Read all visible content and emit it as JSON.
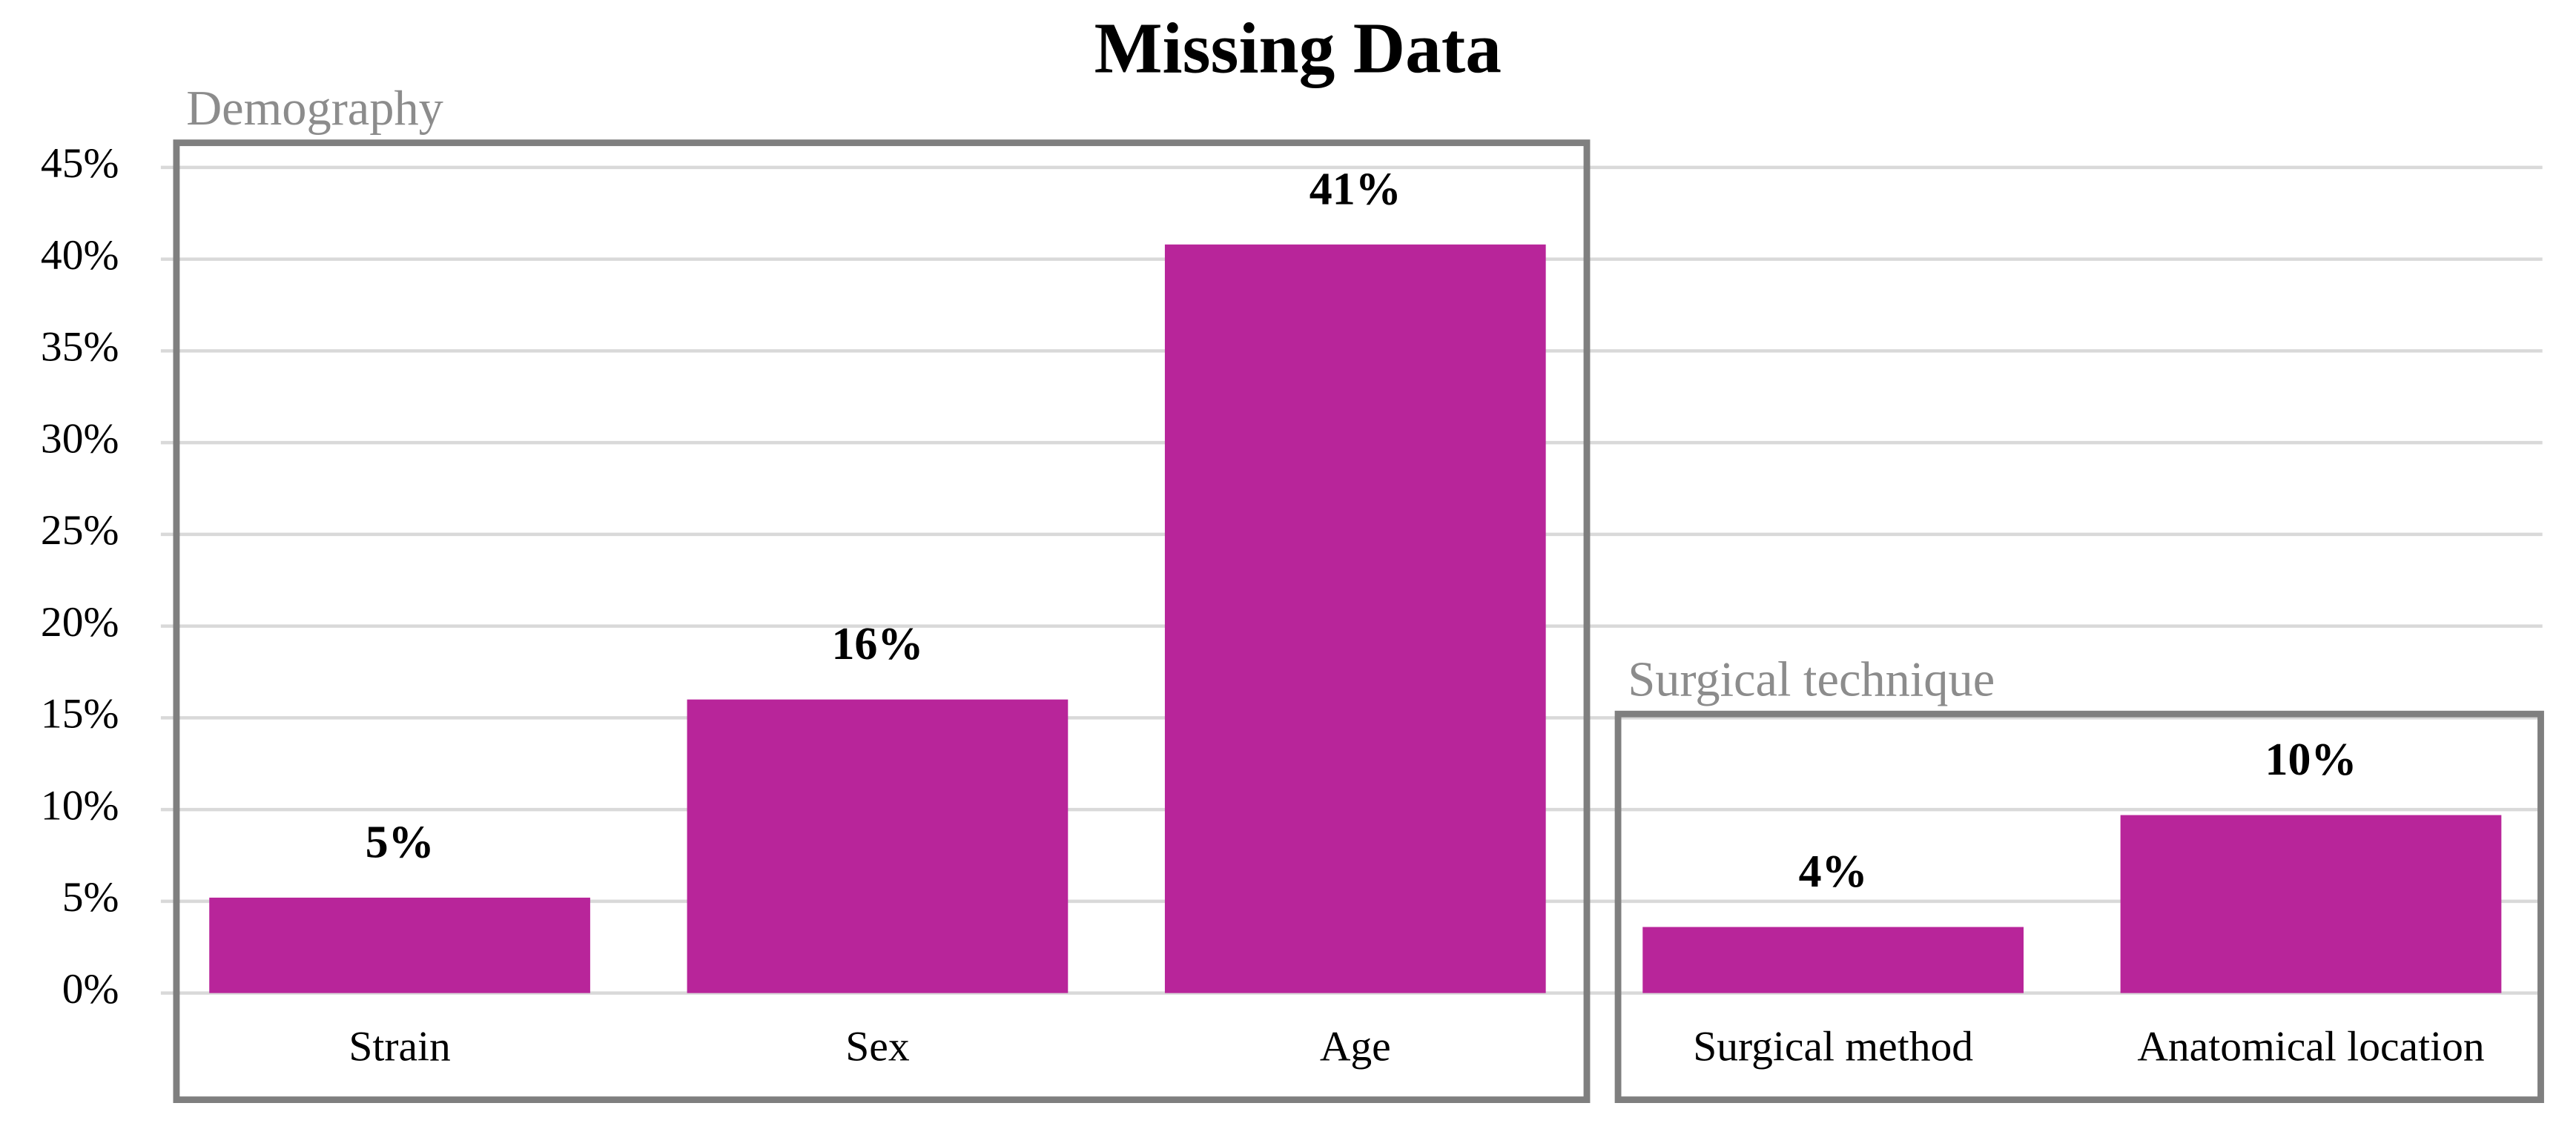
{
  "chart_data": {
    "type": "bar",
    "title": "Missing Data",
    "categories": [
      "Strain",
      "Sex",
      "Age",
      "Surgical method",
      "Anatomical location"
    ],
    "values": [
      5.2,
      16,
      40.8,
      3.6,
      9.7
    ],
    "value_labels": [
      "5%",
      "16%",
      "41%",
      "4%",
      "10%"
    ],
    "color": "#b8259a",
    "ylim": [
      0,
      45
    ],
    "yticks": [
      {
        "value": 0,
        "label": "0%"
      },
      {
        "value": 5,
        "label": "5%"
      },
      {
        "value": 10,
        "label": "10%"
      },
      {
        "value": 15,
        "label": "15%"
      },
      {
        "value": 20,
        "label": "20%"
      },
      {
        "value": 25,
        "label": "25%"
      },
      {
        "value": 30,
        "label": "30%"
      },
      {
        "value": 35,
        "label": "35%"
      },
      {
        "value": 40,
        "label": "40%"
      },
      {
        "value": 45,
        "label": "45%"
      }
    ],
    "grid": true,
    "annotations": [
      "Demography",
      "Surgical technique"
    ]
  }
}
